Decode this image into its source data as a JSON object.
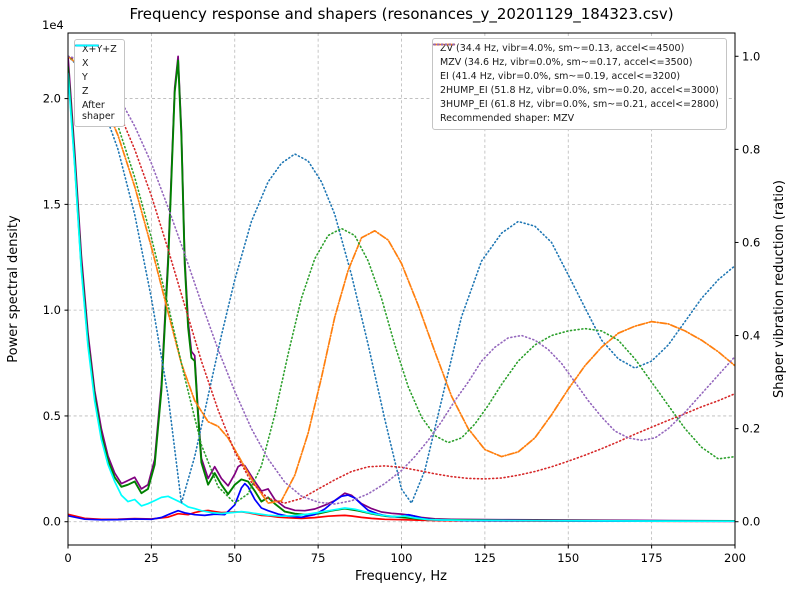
{
  "title": "Frequency response and shapers (resonances_y_20201129_184323.csv)",
  "axes": {
    "x": {
      "label": "Frequency, Hz",
      "min": 0,
      "max": 200,
      "ticks": [
        0,
        25,
        50,
        75,
        100,
        125,
        150,
        175,
        200
      ]
    },
    "y_left": {
      "label": "Power spectral density",
      "offset_text": "1e4",
      "min": -1100,
      "max": 23100,
      "ticks": [
        0,
        5000,
        10000,
        15000,
        20000
      ],
      "tick_labels": [
        "0.0",
        "0.5",
        "1.0",
        "1.5",
        "2.0"
      ]
    },
    "y_right": {
      "label": "Shaper vibration reduction (ratio)",
      "min": -0.05,
      "max": 1.05,
      "ticks": [
        0,
        0.2,
        0.4,
        0.6,
        0.8,
        1.0
      ],
      "tick_labels": [
        "0.0",
        "0.2",
        "0.4",
        "0.6",
        "0.8",
        "1.0"
      ]
    }
  },
  "chart_data": {
    "type": "line",
    "title": "Frequency response and shapers (resonances_y_20201129_184323.csv)",
    "xlabel": "Frequency, Hz",
    "ylabel_left": "Power spectral density",
    "ylabel_right": "Shaper vibration reduction (ratio)",
    "x_range": [
      0,
      200
    ],
    "y_left_range_1e4": [
      0,
      2.2
    ],
    "y_right_range": [
      0,
      1.0
    ],
    "grid": true,
    "series": [
      {
        "name": "X+Y+Z",
        "color": "#800080",
        "style": "solid",
        "axis": "left",
        "width": 1.7,
        "x": [
          0,
          2,
          4,
          6,
          8,
          10,
          12,
          14,
          16,
          18,
          20,
          22,
          24,
          26,
          28,
          30,
          31,
          32,
          33,
          34,
          35,
          36,
          37,
          38,
          39,
          40,
          42,
          44,
          46,
          48,
          50,
          51,
          52,
          53,
          54,
          56,
          58,
          60,
          62,
          65,
          68,
          71,
          74,
          77,
          80,
          83,
          85,
          88,
          91,
          94,
          97,
          100,
          103,
          106,
          110,
          115,
          120,
          130,
          140,
          160,
          180,
          200
        ],
        "y": [
          22000,
          17500,
          12600,
          8900,
          6200,
          4400,
          3100,
          2300,
          1800,
          1950,
          2100,
          1550,
          1750,
          2950,
          6500,
          12500,
          16500,
          20500,
          22000,
          18500,
          12500,
          9500,
          8050,
          7850,
          5200,
          3000,
          2050,
          2600,
          2050,
          1700,
          2250,
          2600,
          2700,
          2650,
          2400,
          1900,
          1450,
          1550,
          1050,
          680,
          540,
          520,
          600,
          780,
          1000,
          1350,
          1250,
          850,
          620,
          460,
          400,
          360,
          300,
          200,
          140,
          115,
          105,
          95,
          85,
          70,
          55,
          45
        ]
      },
      {
        "name": "X",
        "color": "#ff0000",
        "style": "solid",
        "axis": "left",
        "width": 1.7,
        "x": [
          0,
          5,
          10,
          15,
          20,
          25,
          30,
          33,
          36,
          38,
          40,
          42,
          44,
          46,
          48,
          50,
          52,
          54,
          56,
          58,
          60,
          63,
          66,
          70,
          74,
          78,
          81,
          83,
          85,
          88,
          91,
          95,
          100,
          105,
          110,
          120,
          140,
          160,
          180,
          200
        ],
        "y": [
          350,
          160,
          110,
          120,
          150,
          130,
          220,
          380,
          330,
          430,
          500,
          530,
          480,
          430,
          440,
          460,
          470,
          420,
          360,
          300,
          280,
          220,
          185,
          155,
          195,
          260,
          290,
          300,
          270,
          205,
          155,
          115,
          95,
          75,
          60,
          45,
          35,
          28,
          22,
          18
        ]
      },
      {
        "name": "Y",
        "color": "#008000",
        "style": "solid",
        "axis": "left",
        "width": 1.9,
        "x": [
          0,
          2,
          4,
          6,
          8,
          10,
          12,
          14,
          16,
          18,
          20,
          22,
          24,
          26,
          28,
          30,
          31,
          32,
          33,
          34,
          35,
          36,
          37,
          38,
          39,
          40,
          42,
          44,
          46,
          48,
          50,
          52,
          54,
          56,
          58,
          60,
          62,
          65,
          68,
          71,
          75,
          79,
          83,
          87,
          91,
          95,
          100,
          105,
          110,
          120,
          140,
          160,
          180,
          200
        ],
        "y": [
          21500,
          17000,
          12100,
          8500,
          5900,
          4100,
          2900,
          2100,
          1650,
          1750,
          1900,
          1350,
          1550,
          2700,
          6200,
          12200,
          16200,
          20300,
          21800,
          18200,
          12200,
          9200,
          7750,
          7600,
          5000,
          2800,
          1750,
          2300,
          1750,
          1300,
          1750,
          2000,
          1900,
          1450,
          950,
          1150,
          850,
          480,
          380,
          330,
          380,
          520,
          620,
          520,
          380,
          270,
          210,
          140,
          95,
          75,
          55,
          45,
          35,
          30
        ]
      },
      {
        "name": "Z",
        "color": "#0000ff",
        "style": "solid",
        "axis": "left",
        "width": 1.7,
        "x": [
          0,
          5,
          10,
          15,
          20,
          25,
          28,
          31,
          33,
          35,
          38,
          41,
          44,
          47,
          50,
          52,
          53,
          54,
          56,
          58,
          60,
          63,
          66,
          70,
          74,
          77,
          80,
          82,
          84,
          86,
          88,
          90,
          93,
          96,
          99,
          102,
          104,
          107,
          110,
          115,
          120,
          140,
          160,
          180,
          200
        ],
        "y": [
          280,
          120,
          90,
          100,
          130,
          115,
          200,
          400,
          520,
          420,
          330,
          300,
          360,
          330,
          800,
          1600,
          1800,
          1650,
          1050,
          650,
          520,
          360,
          260,
          210,
          340,
          600,
          1000,
          1200,
          1260,
          1120,
          820,
          540,
          360,
          260,
          230,
          330,
          260,
          130,
          90,
          70,
          55,
          45,
          35,
          28,
          22
        ]
      },
      {
        "name": "After shaper",
        "color": "#00ffff",
        "style": "solid",
        "axis": "left",
        "width": 1.7,
        "x": [
          0,
          2,
          4,
          6,
          8,
          10,
          12,
          14,
          16,
          18,
          20,
          22,
          24,
          26,
          28,
          30,
          32,
          34,
          36,
          38,
          40,
          43,
          46,
          50,
          52,
          54,
          57,
          60,
          64,
          68,
          72,
          76,
          80,
          83,
          86,
          90,
          94,
          98,
          101,
          104,
          108,
          112,
          120,
          140,
          160,
          180,
          200
        ],
        "y": [
          21200,
          16800,
          11900,
          8300,
          5700,
          3900,
          2700,
          1900,
          1250,
          950,
          1050,
          750,
          850,
          1000,
          1150,
          1200,
          1050,
          900,
          700,
          620,
          520,
          430,
          390,
          440,
          480,
          440,
          370,
          310,
          260,
          290,
          360,
          460,
          570,
          650,
          590,
          430,
          310,
          240,
          270,
          180,
          100,
          80,
          65,
          50,
          40,
          32,
          26
        ]
      },
      {
        "name": "ZV",
        "color": "#1f77b4",
        "style": "dotted",
        "axis": "right",
        "width": 1.6,
        "x": [
          0,
          5,
          10,
          15,
          20,
          25,
          30,
          34,
          38,
          42,
          46,
          50,
          55,
          60,
          64,
          68,
          72,
          76,
          80,
          85,
          90,
          95,
          100,
          103,
          107,
          112,
          118,
          124,
          130,
          135,
          140,
          145,
          150,
          155,
          160,
          165,
          170,
          175,
          180,
          185,
          190,
          195,
          200
        ],
        "y": [
          1.0,
          0.965,
          0.9,
          0.8,
          0.66,
          0.48,
          0.27,
          0.04,
          0.14,
          0.27,
          0.4,
          0.52,
          0.645,
          0.73,
          0.77,
          0.79,
          0.775,
          0.73,
          0.66,
          0.53,
          0.38,
          0.22,
          0.07,
          0.04,
          0.11,
          0.26,
          0.44,
          0.56,
          0.62,
          0.645,
          0.635,
          0.6,
          0.53,
          0.46,
          0.39,
          0.35,
          0.33,
          0.345,
          0.38,
          0.43,
          0.48,
          0.52,
          0.55
        ]
      },
      {
        "name": "MZV",
        "color": "#ff7f0e",
        "style": "dashdot",
        "axis": "right",
        "width": 1.7,
        "x": [
          0,
          5,
          10,
          15,
          20,
          25,
          30,
          34,
          38,
          42,
          45,
          48,
          52,
          56,
          60,
          64,
          68,
          72,
          76,
          80,
          84,
          88,
          92,
          96,
          100,
          105,
          110,
          115,
          120,
          125,
          130,
          135,
          140,
          145,
          150,
          155,
          160,
          165,
          170,
          175,
          180,
          185,
          190,
          195,
          200
        ],
        "y": [
          1.0,
          0.97,
          0.915,
          0.83,
          0.72,
          0.59,
          0.45,
          0.34,
          0.26,
          0.215,
          0.205,
          0.18,
          0.13,
          0.08,
          0.04,
          0.045,
          0.1,
          0.19,
          0.31,
          0.44,
          0.54,
          0.61,
          0.625,
          0.605,
          0.555,
          0.465,
          0.365,
          0.27,
          0.2,
          0.155,
          0.14,
          0.15,
          0.18,
          0.23,
          0.285,
          0.335,
          0.375,
          0.405,
          0.42,
          0.43,
          0.425,
          0.41,
          0.39,
          0.365,
          0.335
        ]
      },
      {
        "name": "EI",
        "color": "#2ca02c",
        "style": "dotted",
        "axis": "right",
        "width": 1.6,
        "x": [
          0,
          5,
          10,
          15,
          20,
          25,
          30,
          35,
          40,
          45,
          50,
          54,
          58,
          62,
          66,
          70,
          74,
          78,
          82,
          86,
          90,
          94,
          98,
          102,
          106,
          110,
          114,
          118,
          122,
          126,
          130,
          135,
          140,
          145,
          150,
          155,
          160,
          165,
          170,
          175,
          180,
          185,
          190,
          195,
          200
        ],
        "y": [
          1.0,
          0.98,
          0.93,
          0.85,
          0.74,
          0.61,
          0.465,
          0.31,
          0.165,
          0.075,
          0.04,
          0.06,
          0.12,
          0.23,
          0.36,
          0.48,
          0.565,
          0.615,
          0.63,
          0.615,
          0.56,
          0.48,
          0.38,
          0.29,
          0.225,
          0.185,
          0.17,
          0.18,
          0.21,
          0.25,
          0.295,
          0.345,
          0.38,
          0.4,
          0.41,
          0.415,
          0.41,
          0.39,
          0.35,
          0.3,
          0.25,
          0.2,
          0.16,
          0.135,
          0.14
        ]
      },
      {
        "name": "2HUMP_EI",
        "color": "#d62728",
        "style": "dotted",
        "axis": "right",
        "width": 1.6,
        "x": [
          0,
          5,
          10,
          15,
          20,
          25,
          30,
          35,
          40,
          45,
          50,
          55,
          60,
          65,
          70,
          75,
          80,
          85,
          90,
          95,
          100,
          105,
          110,
          115,
          120,
          125,
          130,
          135,
          140,
          145,
          150,
          155,
          160,
          165,
          170,
          175,
          180,
          185,
          190,
          195,
          200
        ],
        "y": [
          1.0,
          0.985,
          0.945,
          0.885,
          0.8,
          0.7,
          0.585,
          0.465,
          0.345,
          0.24,
          0.15,
          0.085,
          0.05,
          0.04,
          0.05,
          0.07,
          0.09,
          0.108,
          0.118,
          0.12,
          0.117,
          0.11,
          0.103,
          0.097,
          0.093,
          0.092,
          0.094,
          0.1,
          0.108,
          0.118,
          0.13,
          0.143,
          0.157,
          0.172,
          0.188,
          0.203,
          0.218,
          0.232,
          0.247,
          0.26,
          0.275
        ]
      },
      {
        "name": "3HUMP_EI",
        "color": "#9467bd",
        "style": "dotted",
        "axis": "right",
        "width": 1.6,
        "x": [
          0,
          5,
          10,
          15,
          20,
          25,
          30,
          35,
          40,
          45,
          50,
          55,
          60,
          65,
          70,
          75,
          80,
          85,
          90,
          95,
          100,
          104,
          108,
          112,
          116,
          120,
          124,
          128,
          132,
          136,
          140,
          144,
          148,
          152,
          156,
          160,
          164,
          168,
          172,
          176,
          180,
          185,
          190,
          195,
          200
        ],
        "y": [
          1.0,
          0.99,
          0.96,
          0.915,
          0.85,
          0.77,
          0.675,
          0.575,
          0.47,
          0.37,
          0.28,
          0.2,
          0.135,
          0.085,
          0.055,
          0.042,
          0.038,
          0.045,
          0.06,
          0.082,
          0.11,
          0.14,
          0.175,
          0.215,
          0.26,
          0.3,
          0.345,
          0.375,
          0.395,
          0.4,
          0.39,
          0.37,
          0.34,
          0.3,
          0.26,
          0.225,
          0.195,
          0.18,
          0.175,
          0.18,
          0.2,
          0.235,
          0.275,
          0.315,
          0.355
        ]
      }
    ]
  },
  "legend_left": {
    "items": [
      {
        "label": "X+Y+Z",
        "color": "#800080",
        "style": "solid"
      },
      {
        "label": "X",
        "color": "#ff0000",
        "style": "solid"
      },
      {
        "label": "Y",
        "color": "#008000",
        "style": "solid"
      },
      {
        "label": "Z",
        "color": "#0000ff",
        "style": "solid"
      },
      {
        "label": "After\nshaper",
        "color": "#00ffff",
        "style": "solid"
      }
    ]
  },
  "legend_right": {
    "items": [
      {
        "label": "ZV (34.4 Hz, vibr=4.0%, sm~=0.13, accel<=4500)",
        "color": "#1f77b4",
        "style": "dotted"
      },
      {
        "label": "MZV (34.6 Hz, vibr=0.0%, sm~=0.17, accel<=3500)",
        "color": "#ff7f0e",
        "style": "dashdot"
      },
      {
        "label": "EI (41.4 Hz, vibr=0.0%, sm~=0.19, accel<=3200)",
        "color": "#2ca02c",
        "style": "dotted"
      },
      {
        "label": "2HUMP_EI (51.8 Hz, vibr=0.0%, sm~=0.20, accel<=3000)",
        "color": "#d62728",
        "style": "dotted"
      },
      {
        "label": "3HUMP_EI (61.8 Hz, vibr=0.0%, sm~=0.21, accel<=2800)",
        "color": "#9467bd",
        "style": "dotted"
      }
    ],
    "note": "Recommended shaper: MZV"
  }
}
